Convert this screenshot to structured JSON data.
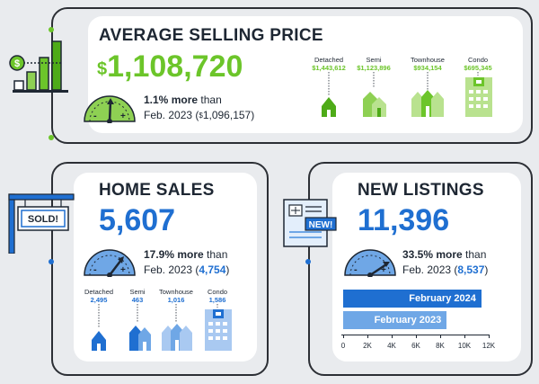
{
  "avg_price": {
    "title": "AVERAGE SELLING PRICE",
    "dollar": "$",
    "value": "1,108,720",
    "change_pct": "1.1%",
    "change_word": " more",
    "than": " than",
    "prev_period": "Feb. 2023 (",
    "prev_dollar": "$",
    "prev_value": "1,096,157",
    "close_paren": ")",
    "icon_badge": "$",
    "color": "#6cc52a",
    "types": [
      {
        "label": "Detached",
        "value": "$1,443,612"
      },
      {
        "label": "Semi",
        "value": "$1,123,896"
      },
      {
        "label": "Townhouse",
        "value": "$934,154"
      },
      {
        "label": "Condo",
        "value": "$695,345"
      }
    ]
  },
  "home_sales": {
    "title": "HOME SALES",
    "value": "5,607",
    "change_pct": "17.9%",
    "change_word": " more",
    "than": " than",
    "prev_period": "Feb. 2023 (",
    "prev_value": "4,754",
    "close_paren": ")",
    "sign_text": "SOLD!",
    "color": "#1f6fd1",
    "types": [
      {
        "label": "Detached",
        "value": "2,495"
      },
      {
        "label": "Semi",
        "value": "463"
      },
      {
        "label": "Townhouse",
        "value": "1,016"
      },
      {
        "label": "Condo",
        "value": "1,586"
      }
    ]
  },
  "new_listings": {
    "title": "NEW LISTINGS",
    "value": "11,396",
    "change_pct": "33.5%",
    "change_word": " more",
    "than": " than",
    "prev_period": "Feb. 2023 (",
    "prev_value": "8,537",
    "close_paren": ")",
    "badge_text": "NEW!",
    "color": "#1f6fd1"
  },
  "gauge_marks": {
    "minus": "-",
    "plus": "+"
  },
  "chart_data": {
    "type": "bar",
    "orientation": "horizontal",
    "categories": [
      "February 2024",
      "February 2023"
    ],
    "values": [
      11396,
      8537
    ],
    "xlim": [
      0,
      12000
    ],
    "tick_labels": [
      "0",
      "2K",
      "4K",
      "6K",
      "8K",
      "10K",
      "12K"
    ],
    "colors": [
      "#1f6fd1",
      "#6fa7e6"
    ],
    "grid": false
  }
}
